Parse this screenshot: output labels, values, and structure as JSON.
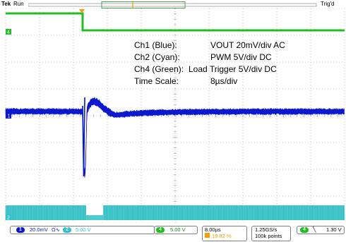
{
  "header": {
    "brand": "Tek",
    "run_state": "Run",
    "trigger_state": "Trig'd"
  },
  "annotation": {
    "ch1_label": "Ch1 (Blue):",
    "ch1_value": "VOUT 20mV/div AC",
    "ch2_label": "Ch2 (Cyan):",
    "ch2_value": "PWM 5V/div DC",
    "ch4_label": "Ch4 (Green):",
    "ch4_value": "Load Trigger 5V/div DC",
    "time_label": "Time Scale:",
    "time_value": "8µs/div"
  },
  "markers": {
    "ch4": "4",
    "ch1": "1",
    "ch2": "2"
  },
  "status": {
    "ch1_badge": "1",
    "ch1_scale": "20.0mV",
    "ch1_coupling": "Ω∿",
    "ch2_badge": "2",
    "ch2_scale": "5.00 V",
    "ch4_badge": "4",
    "ch4_scale": "5.00 V",
    "timebase": "8.00µs",
    "trigger_position": "19.82 %",
    "sample_rate": "1.25GS/s",
    "record_length": "100k points",
    "trig_source_badge": "4",
    "trig_slope": "╲",
    "trig_level": "1.30 V"
  },
  "colors": {
    "grid_bg": "#ffffff",
    "graticule": "#9a9a9a",
    "ch1": "#0a18d0",
    "ch2": "#2bc3c9",
    "ch4": "#1fbf1f",
    "trigger_marker": "#f5a000"
  }
}
